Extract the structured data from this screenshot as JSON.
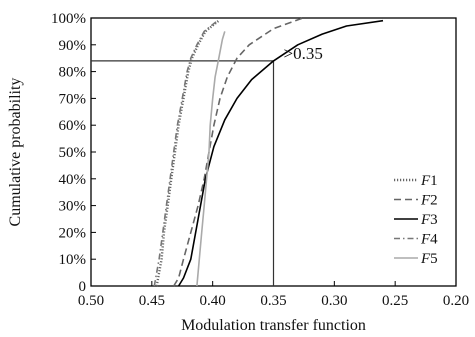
{
  "chart_data": {
    "type": "line",
    "xlabel": "Modulation transfer function",
    "ylabel": "Cumulative probability",
    "xlim": [
      0.5,
      0.2
    ],
    "ylim": [
      0,
      100
    ],
    "x_reversed": true,
    "x_ticks": [
      "0.50",
      "0.45",
      "0.40",
      "0.35",
      "0.30",
      "0.25",
      "0.20"
    ],
    "y_ticks": [
      "0",
      "10%",
      "20%",
      "30%",
      "40%",
      "50%",
      "60%",
      "70%",
      "80%",
      "90%",
      "100%"
    ],
    "legend_position": "lower-right",
    "grid": false,
    "annotation": {
      "text": ">0.35",
      "x": 0.35,
      "y": 84
    },
    "series": [
      {
        "name": "F1",
        "color": "#666666",
        "dash": "dotted",
        "points": [
          [
            0.446,
            0
          ],
          [
            0.444,
            5
          ],
          [
            0.442,
            10
          ],
          [
            0.44,
            20
          ],
          [
            0.437,
            30
          ],
          [
            0.434,
            40
          ],
          [
            0.431,
            50
          ],
          [
            0.428,
            60
          ],
          [
            0.424,
            70
          ],
          [
            0.42,
            80
          ],
          [
            0.417,
            85
          ],
          [
            0.412,
            90
          ],
          [
            0.406,
            95
          ],
          [
            0.395,
            99
          ]
        ]
      },
      {
        "name": "F2",
        "color": "#666666",
        "dash": "dashed",
        "points": [
          [
            0.432,
            0
          ],
          [
            0.428,
            3
          ],
          [
            0.424,
            10
          ],
          [
            0.418,
            20
          ],
          [
            0.412,
            30
          ],
          [
            0.407,
            40
          ],
          [
            0.403,
            50
          ],
          [
            0.399,
            60
          ],
          [
            0.394,
            70
          ],
          [
            0.388,
            78
          ],
          [
            0.38,
            85
          ],
          [
            0.37,
            90
          ],
          [
            0.35,
            96
          ],
          [
            0.326,
            100
          ]
        ]
      },
      {
        "name": "F3",
        "color": "#000000",
        "dash": "solid",
        "points": [
          [
            0.428,
            0
          ],
          [
            0.424,
            3
          ],
          [
            0.418,
            10
          ],
          [
            0.412,
            25
          ],
          [
            0.406,
            40
          ],
          [
            0.399,
            52
          ],
          [
            0.39,
            62
          ],
          [
            0.38,
            70
          ],
          [
            0.368,
            77
          ],
          [
            0.35,
            84
          ],
          [
            0.33,
            90
          ],
          [
            0.31,
            94
          ],
          [
            0.29,
            97
          ],
          [
            0.26,
            99
          ]
        ]
      },
      {
        "name": "F4",
        "color": "#777777",
        "dash": "dash-dot",
        "points": [
          [
            0.448,
            0
          ],
          [
            0.446,
            5
          ],
          [
            0.444,
            10
          ],
          [
            0.441,
            20
          ],
          [
            0.438,
            30
          ],
          [
            0.435,
            40
          ],
          [
            0.432,
            50
          ],
          [
            0.429,
            60
          ],
          [
            0.425,
            70
          ],
          [
            0.421,
            80
          ],
          [
            0.418,
            85
          ],
          [
            0.413,
            90
          ],
          [
            0.407,
            95
          ],
          [
            0.396,
            99
          ]
        ]
      },
      {
        "name": "F5",
        "color": "#aaaaaa",
        "dash": "solid",
        "points": [
          [
            0.413,
            0
          ],
          [
            0.411,
            10
          ],
          [
            0.409,
            20
          ],
          [
            0.407,
            30
          ],
          [
            0.405,
            40
          ],
          [
            0.403,
            50
          ],
          [
            0.402,
            60
          ],
          [
            0.4,
            70
          ],
          [
            0.398,
            78
          ],
          [
            0.395,
            85
          ],
          [
            0.392,
            92
          ],
          [
            0.39,
            95
          ]
        ]
      }
    ]
  }
}
